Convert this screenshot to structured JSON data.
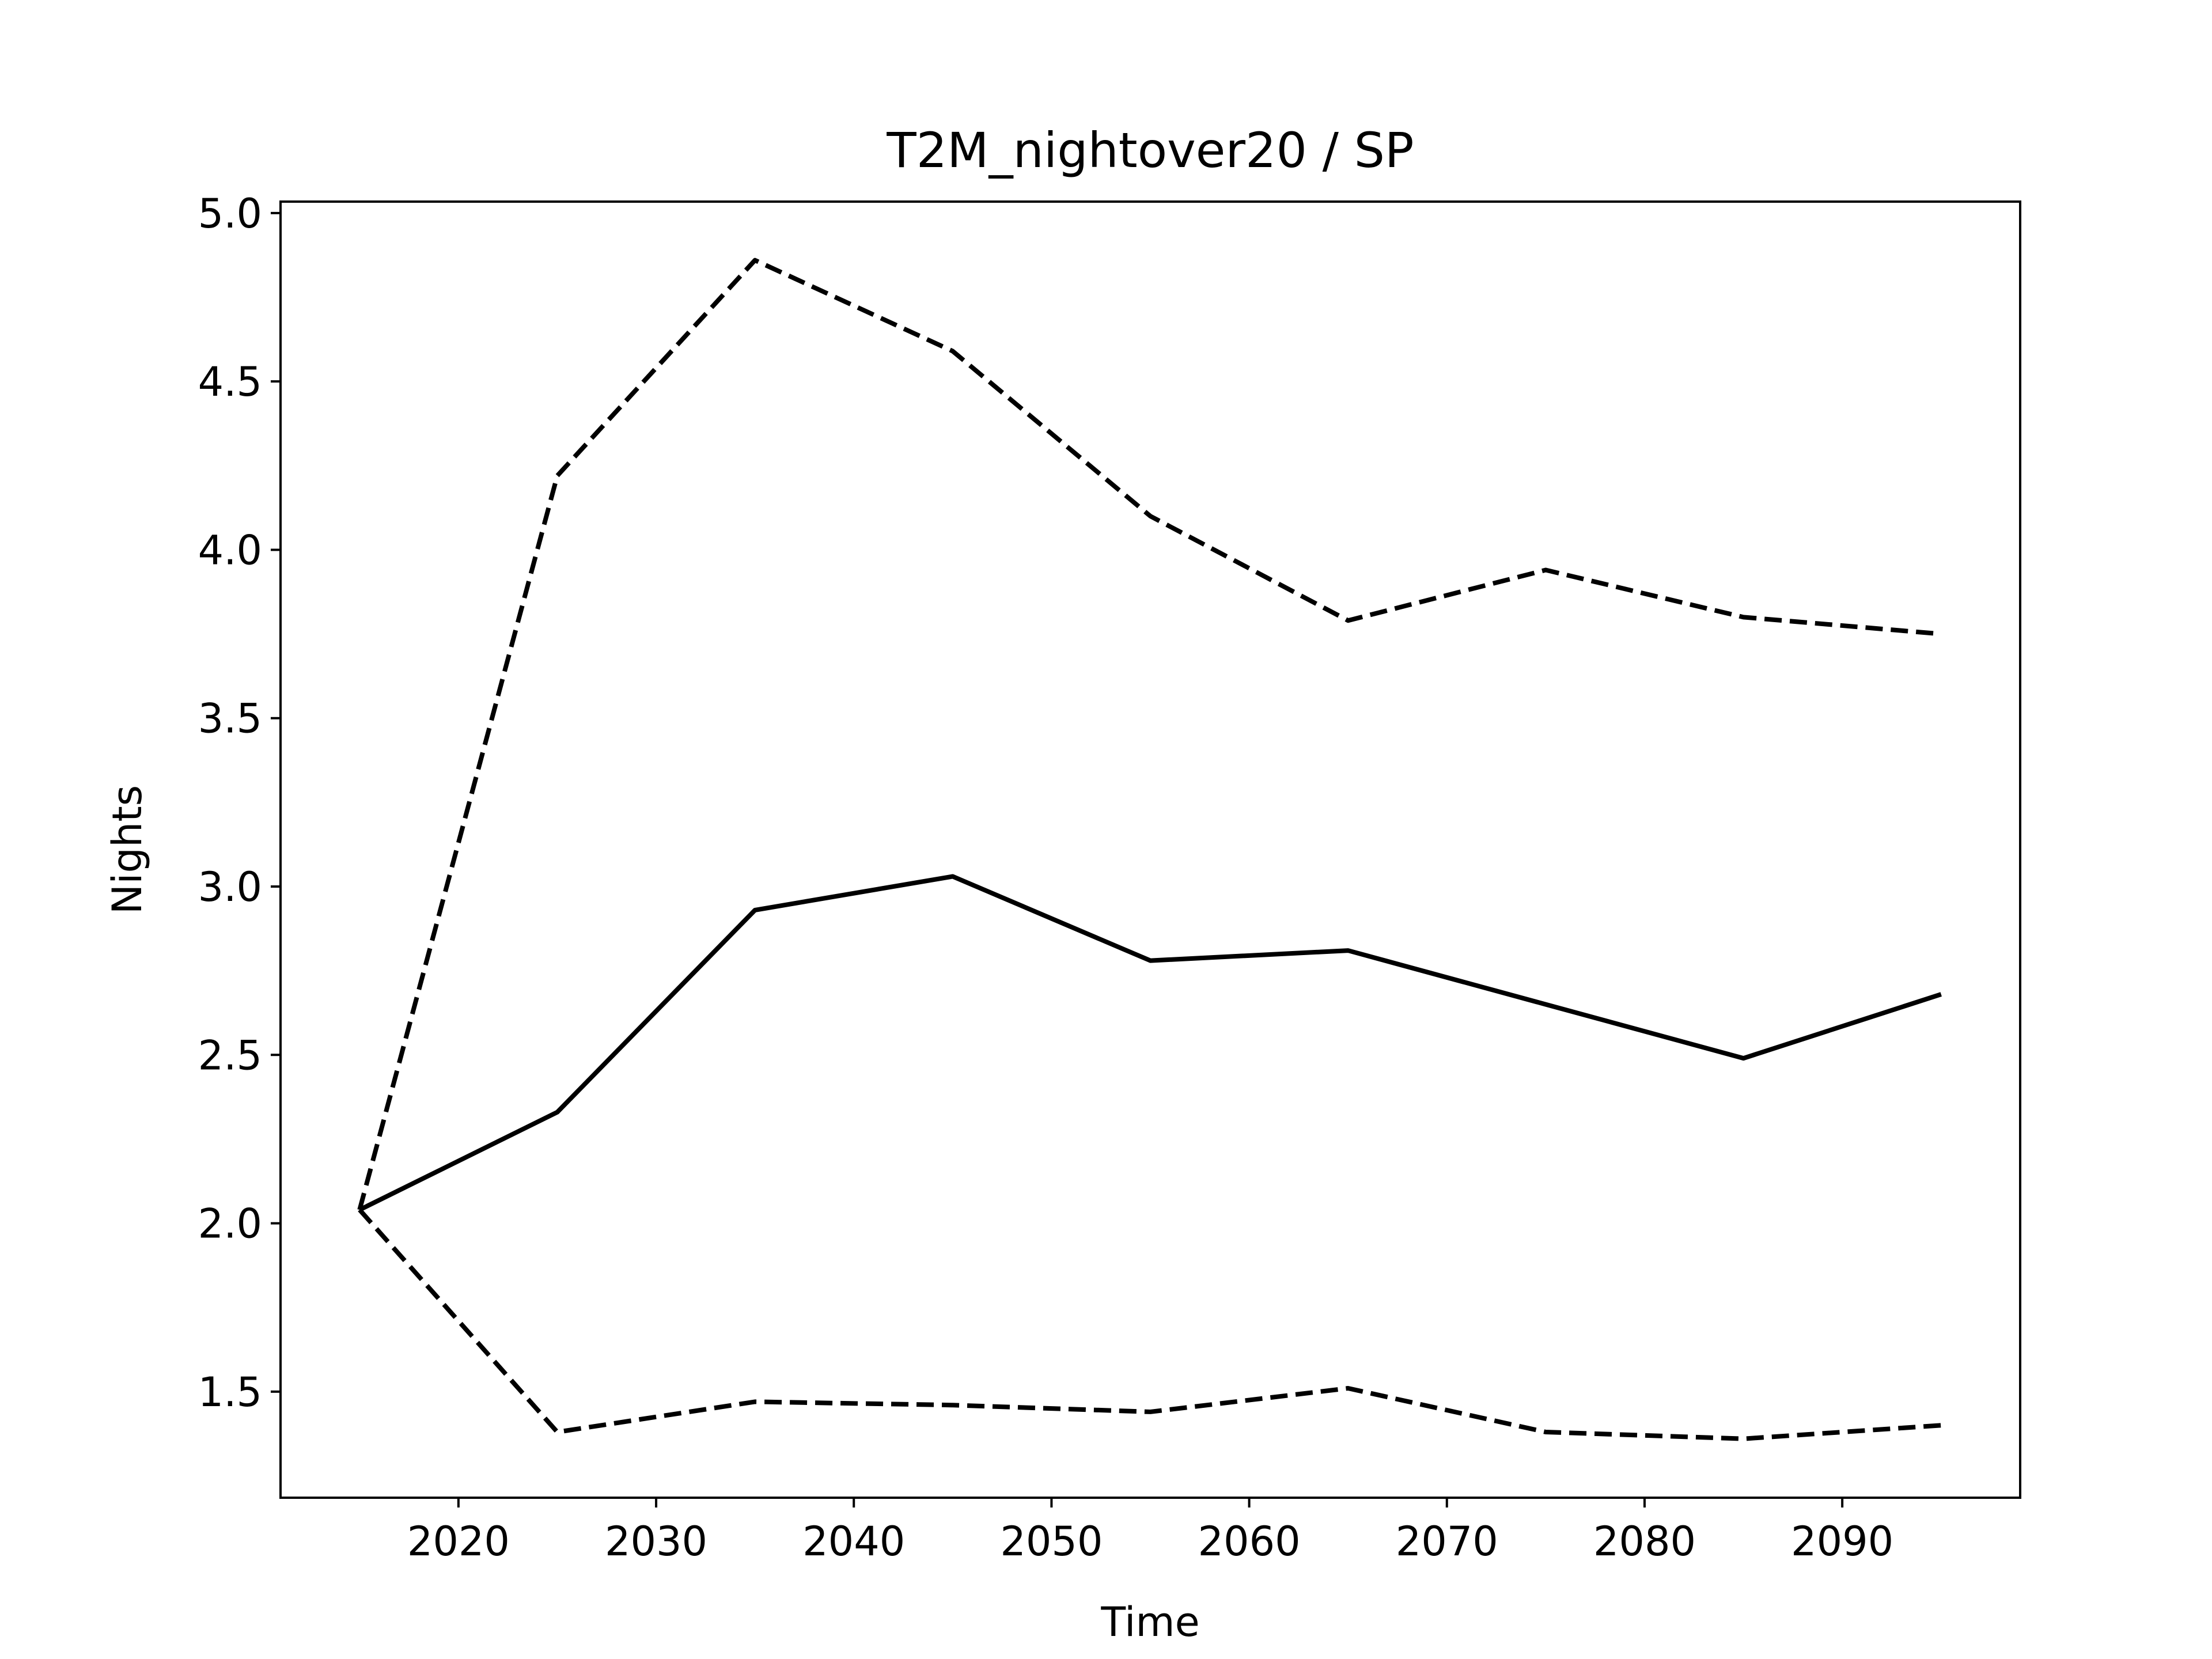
{
  "chart_data": {
    "type": "line",
    "title": "T2M_nightover20 / SP",
    "xlabel": "Time",
    "ylabel": "Nights",
    "x": [
      2015,
      2025,
      2035,
      2045,
      2055,
      2065,
      2075,
      2085,
      2095
    ],
    "series": [
      {
        "color": "#000000",
        "linestyle": "solid",
        "values": [
          2.04,
          2.33,
          2.93,
          3.03,
          2.78,
          2.81,
          2.65,
          2.49,
          2.68
        ]
      },
      {
        "color": "#000000",
        "linestyle": "dashed",
        "values": [
          2.04,
          4.22,
          4.86,
          4.59,
          4.1,
          3.79,
          3.94,
          3.8,
          3.75
        ]
      },
      {
        "color": "#000000",
        "linestyle": "dashed",
        "values": [
          2.04,
          1.38,
          1.47,
          1.46,
          1.44,
          1.51,
          1.38,
          1.36,
          1.4
        ]
      }
    ],
    "xlim": [
      2011,
      2099
    ],
    "xticks": [
      2020,
      2030,
      2040,
      2050,
      2060,
      2070,
      2080,
      2090
    ],
    "ylim": [
      1.185,
      5.034
    ],
    "yticks": [
      {
        "value": 1.5,
        "label": "1.5"
      },
      {
        "value": 2,
        "label": "2.0"
      },
      {
        "value": 2.5,
        "label": "2.5"
      },
      {
        "value": 3,
        "label": "3.0"
      },
      {
        "value": 3.5,
        "label": "3.5"
      },
      {
        "value": 4,
        "label": "4.0"
      },
      {
        "value": 4.5,
        "label": "4.5"
      },
      {
        "value": 5,
        "label": "5.0"
      }
    ],
    "grid": false
  }
}
